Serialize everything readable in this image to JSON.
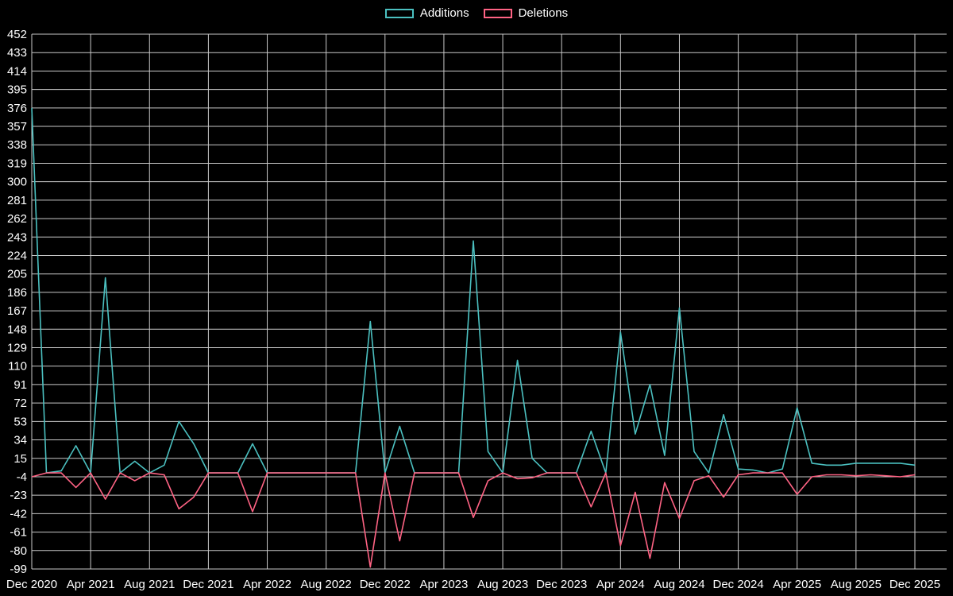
{
  "chart_data": {
    "type": "line",
    "title": "",
    "xlabel": "",
    "ylabel": "",
    "grid": true,
    "legend_position": "top",
    "background": "#000000",
    "grid_color": "#c9c9c9",
    "text_color": "#ffffff",
    "ylim": [
      -99,
      452
    ],
    "yticks": [
      452,
      433,
      414,
      395,
      376,
      357,
      338,
      319,
      300,
      281,
      262,
      243,
      224,
      205,
      186,
      167,
      148,
      129,
      110,
      91,
      72,
      53,
      34,
      15,
      -4,
      -23,
      -42,
      -61,
      -80,
      -99
    ],
    "xtick_every": 4,
    "xticks_shown": [
      "Dec 2020",
      "Apr 2021",
      "Aug 2021",
      "Dec 2021",
      "Apr 2022",
      "Aug 2022",
      "Dec 2022",
      "Apr 2023",
      "Aug 2023",
      "Dec 2023",
      "Apr 2024",
      "Aug 2024",
      "Dec 2024",
      "Apr 2025",
      "Aug 2025",
      "Dec 2025"
    ],
    "x": [
      "Dec 2020",
      "Jan 2021",
      "Feb 2021",
      "Mar 2021",
      "Apr 2021",
      "May 2021",
      "Jun 2021",
      "Jul 2021",
      "Aug 2021",
      "Sep 2021",
      "Oct 2021",
      "Nov 2021",
      "Dec 2021",
      "Jan 2022",
      "Feb 2022",
      "Mar 2022",
      "Apr 2022",
      "May 2022",
      "Jun 2022",
      "Jul 2022",
      "Aug 2022",
      "Sep 2022",
      "Oct 2022",
      "Nov 2022",
      "Dec 2022",
      "Jan 2023",
      "Feb 2023",
      "Mar 2023",
      "Apr 2023",
      "May 2023",
      "Jun 2023",
      "Jul 2023",
      "Aug 2023",
      "Sep 2023",
      "Oct 2023",
      "Nov 2023",
      "Dec 2023",
      "Jan 2024",
      "Feb 2024",
      "Mar 2024",
      "Apr 2024",
      "May 2024",
      "Jun 2024",
      "Jul 2024",
      "Aug 2024",
      "Sep 2024",
      "Oct 2024",
      "Nov 2024",
      "Dec 2024",
      "Jan 2025",
      "Feb 2025",
      "Mar 2025",
      "Apr 2025",
      "May 2025",
      "Jun 2025",
      "Jul 2025",
      "Aug 2025",
      "Sep 2025",
      "Oct 2025",
      "Nov 2025",
      "Dec 2025"
    ],
    "series": [
      {
        "name": "Additions",
        "color": "#4bc0c0",
        "values": [
          376,
          0,
          2,
          28,
          0,
          201,
          0,
          12,
          0,
          8,
          53,
          30,
          0,
          0,
          0,
          30,
          0,
          0,
          0,
          0,
          0,
          0,
          0,
          156,
          0,
          48,
          0,
          0,
          0,
          0,
          239,
          22,
          0,
          116,
          15,
          0,
          0,
          0,
          43,
          0,
          145,
          40,
          91,
          18,
          170,
          22,
          0,
          60,
          4,
          3,
          0,
          4,
          67,
          10,
          8,
          8,
          10,
          10,
          10,
          10,
          8
        ]
      },
      {
        "name": "Deletions",
        "color": "#ff6384",
        "values": [
          -4,
          0,
          0,
          -15,
          0,
          -27,
          0,
          -8,
          0,
          -2,
          -37,
          -25,
          0,
          0,
          0,
          -40,
          0,
          0,
          0,
          0,
          0,
          0,
          0,
          -97,
          0,
          -70,
          0,
          0,
          0,
          0,
          -46,
          -8,
          0,
          -6,
          -5,
          0,
          0,
          0,
          -35,
          0,
          -75,
          -20,
          -88,
          -10,
          -47,
          -8,
          -3,
          -25,
          -2,
          0,
          0,
          0,
          -22,
          -4,
          -2,
          -2,
          -3,
          -2,
          -3,
          -4,
          -2
        ]
      }
    ]
  }
}
